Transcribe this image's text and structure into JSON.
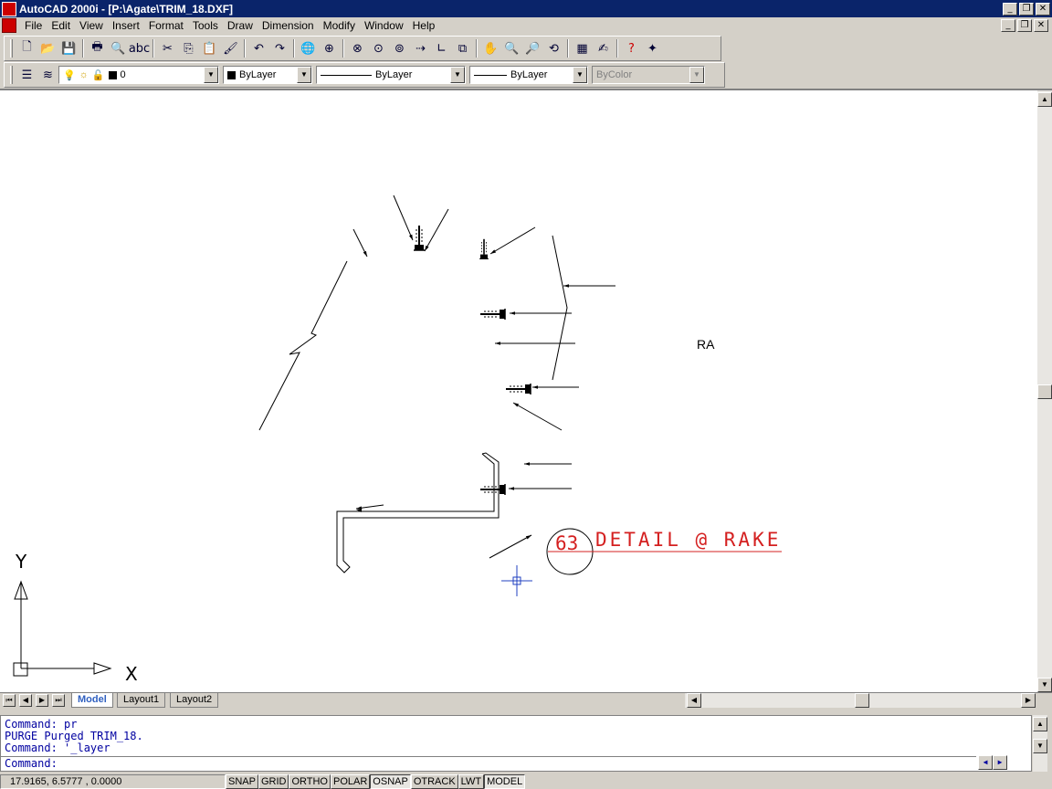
{
  "window": {
    "title": "AutoCAD 2000i - [P:\\Agate\\TRIM_18.DXF]",
    "buttons": {
      "minimize": "_",
      "restore": "❐",
      "close": "✕"
    }
  },
  "menu": [
    "File",
    "Edit",
    "View",
    "Insert",
    "Format",
    "Tools",
    "Draw",
    "Dimension",
    "Modify",
    "Window",
    "Help"
  ],
  "toolbar": {
    "standard_icons": [
      "new-icon",
      "open-icon",
      "save-icon",
      "print-icon",
      "preview-icon",
      "spell-icon",
      "cut-icon",
      "copy-icon",
      "paste-icon",
      "match-properties-icon",
      "undo-icon",
      "redo-icon",
      "hyperlink-icon",
      "web-icon",
      "tracking-icon",
      "snap-from-icon",
      "object-snap-icon",
      "ucs-icon",
      "distance-icon",
      "angle-icon",
      "pan-icon",
      "zoom-realtime-icon",
      "zoom-window-icon",
      "zoom-previous-icon",
      "properties-icon",
      "design-center-icon",
      "help-icon",
      "today-icon"
    ],
    "standard_glyphs": [
      "🗋",
      "📂",
      "💾",
      "🖶",
      "🔍",
      "abc",
      "✂",
      "⎘",
      "📋",
      "🖌",
      "↶",
      "↷",
      "🌐",
      "⊕",
      "⊗",
      "⊙",
      "⊚",
      "⇢",
      "∟",
      "⧉",
      "✋",
      "🔍",
      "🔎",
      "⟲",
      "▦",
      "✍",
      "?",
      "✦"
    ]
  },
  "properties": {
    "layer": "0",
    "color": "ByLayer",
    "linetype": "ByLayer",
    "lineweight": "ByLayer",
    "plotstyle": "ByColor"
  },
  "drawing": {
    "labels": {
      "ra": "RA",
      "detail_title": "DETAIL @ RAKE",
      "detail_number": "63"
    },
    "ucs": {
      "x": "X",
      "y": "Y"
    },
    "colors": {
      "lines": "#000000",
      "detail": "#d42020",
      "crosshair": "#2040c0"
    }
  },
  "tabs": [
    "Model",
    "Layout1",
    "Layout2"
  ],
  "active_tab": "Model",
  "command": {
    "history": [
      "Command: pr",
      "PURGE Purged TRIM_18.",
      "Command: '_layer"
    ],
    "prompt": "Command:"
  },
  "status": {
    "coords": "17.9165, 6.5777 , 0.0000",
    "toggles": [
      {
        "label": "SNAP",
        "on": false
      },
      {
        "label": "GRID",
        "on": false
      },
      {
        "label": "ORTHO",
        "on": false
      },
      {
        "label": "POLAR",
        "on": false
      },
      {
        "label": "OSNAP",
        "on": true
      },
      {
        "label": "OTRACK",
        "on": false
      },
      {
        "label": "LWT",
        "on": false
      },
      {
        "label": "MODEL",
        "on": true
      }
    ]
  }
}
